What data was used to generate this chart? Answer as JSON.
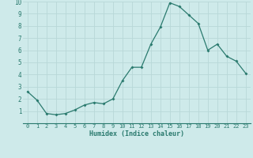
{
  "x": [
    0,
    1,
    2,
    3,
    4,
    5,
    6,
    7,
    8,
    9,
    10,
    11,
    12,
    13,
    14,
    15,
    16,
    17,
    18,
    19,
    20,
    21,
    22,
    23
  ],
  "y": [
    2.6,
    1.9,
    0.8,
    0.7,
    0.8,
    1.1,
    1.5,
    1.7,
    1.6,
    2.0,
    3.5,
    4.6,
    4.6,
    6.5,
    7.9,
    9.9,
    9.6,
    8.9,
    8.2,
    6.0,
    6.5,
    5.5,
    5.1,
    4.1
  ],
  "xlabel": "Humidex (Indice chaleur)",
  "ylim": [
    0,
    10
  ],
  "xlim": [
    -0.5,
    23.5
  ],
  "line_color": "#2a7a6e",
  "marker": "D",
  "marker_size": 2.0,
  "bg_color": "#ceeaea",
  "grid_color": "#b8d8d8",
  "tick_label_color": "#2a7a6e",
  "xlabel_color": "#2a7a6e",
  "yticks": [
    1,
    2,
    3,
    4,
    5,
    6,
    7,
    8,
    9,
    10
  ],
  "xticks": [
    0,
    1,
    2,
    3,
    4,
    5,
    6,
    7,
    8,
    9,
    10,
    11,
    12,
    13,
    14,
    15,
    16,
    17,
    18,
    19,
    20,
    21,
    22,
    23
  ]
}
